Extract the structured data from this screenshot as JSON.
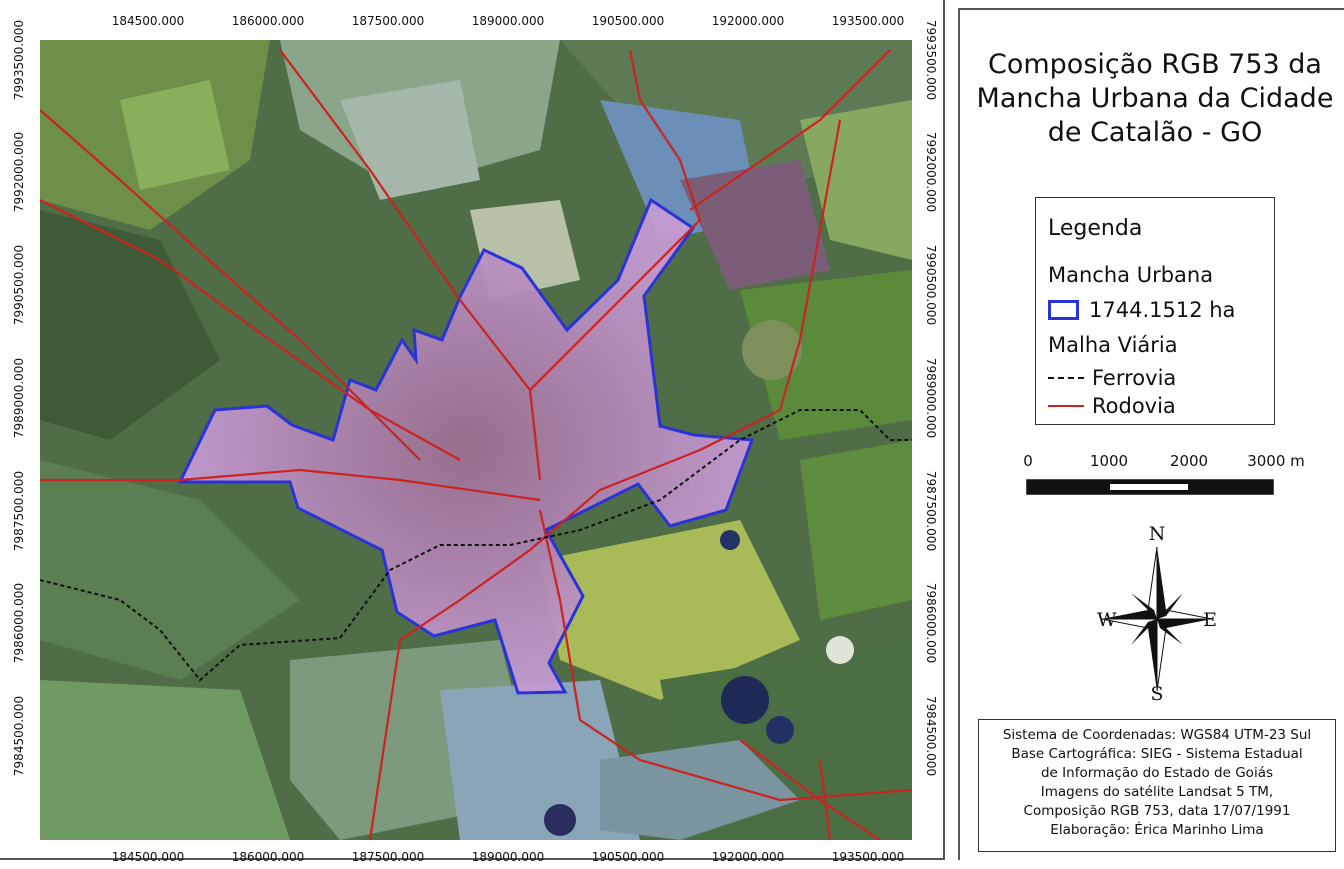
{
  "map": {
    "x_ticks": [
      "184500.000",
      "186000.000",
      "187500.000",
      "189000.000",
      "190500.000",
      "192000.000",
      "193500.000"
    ],
    "y_ticks": [
      "7993500.000",
      "7992000.000",
      "7990500.000",
      "7989000.000",
      "7987500.000",
      "7986000.000",
      "7984500.000"
    ]
  },
  "title": {
    "line1": "Composição RGB 753 da",
    "line2": "Mancha Urbana da Cidade",
    "line3": "de Catalão - GO"
  },
  "legend": {
    "title": "Legenda",
    "group_urban": "Mancha Urbana",
    "urban_value": "1744.1512 ha",
    "group_roads": "Malha Viária",
    "rail_label": "Ferrovia",
    "road_label": "Rodovia",
    "colors": {
      "urban": "#2a33d8",
      "road": "#cc2222",
      "rail": "#111111"
    }
  },
  "scalebar": {
    "labels": [
      "0",
      "1000",
      "2000",
      "3000 m"
    ]
  },
  "compass": {
    "n": "N",
    "s": "S",
    "e": "E",
    "w": "W"
  },
  "credits": {
    "line1": "Sistema de Coordenadas: WGS84 UTM-23 Sul",
    "line2": "Base Cartográfica: SIEG - Sistema Estadual",
    "line3": "de Informação do Estado de Goiás",
    "line4": "Imagens do satélite Landsat 5 TM,",
    "line5": "Composição RGB 753, data 17/07/1991",
    "line6": "Elaboração: Érica Marinho Lima"
  }
}
